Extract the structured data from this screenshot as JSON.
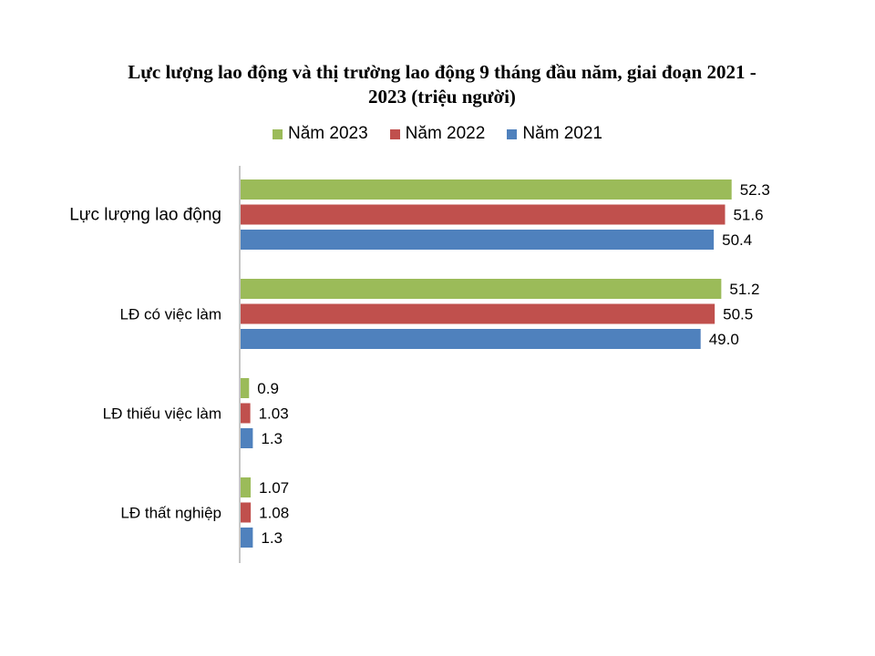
{
  "chart_data": {
    "type": "bar",
    "orientation": "horizontal",
    "title": "Lực lượng lao động và thị trường lao động 9 tháng đầu năm, giai đoạn 2021 - 2023 (triệu người)",
    "categories": [
      "Lực lượng lao động",
      "LĐ có việc làm",
      "LĐ thiếu việc làm",
      "LĐ thất nghiệp"
    ],
    "series": [
      {
        "name": "Năm 2023",
        "color": "#9BBB59",
        "values": [
          52.3,
          51.2,
          0.9,
          1.07
        ],
        "labels": [
          "52.3",
          "51.2",
          "0.9",
          "1.07"
        ]
      },
      {
        "name": "Năm 2022",
        "color": "#C0504D",
        "values": [
          51.6,
          50.5,
          1.03,
          1.08
        ],
        "labels": [
          "51.6",
          "50.5",
          "1.03",
          "1.08"
        ]
      },
      {
        "name": "Năm 2021",
        "color": "#4F81BD",
        "values": [
          50.4,
          49.0,
          1.3,
          1.3
        ],
        "labels": [
          "50.4",
          "49.0",
          "1.3",
          "1.3"
        ]
      }
    ],
    "legend_position": "top",
    "grid": false
  }
}
